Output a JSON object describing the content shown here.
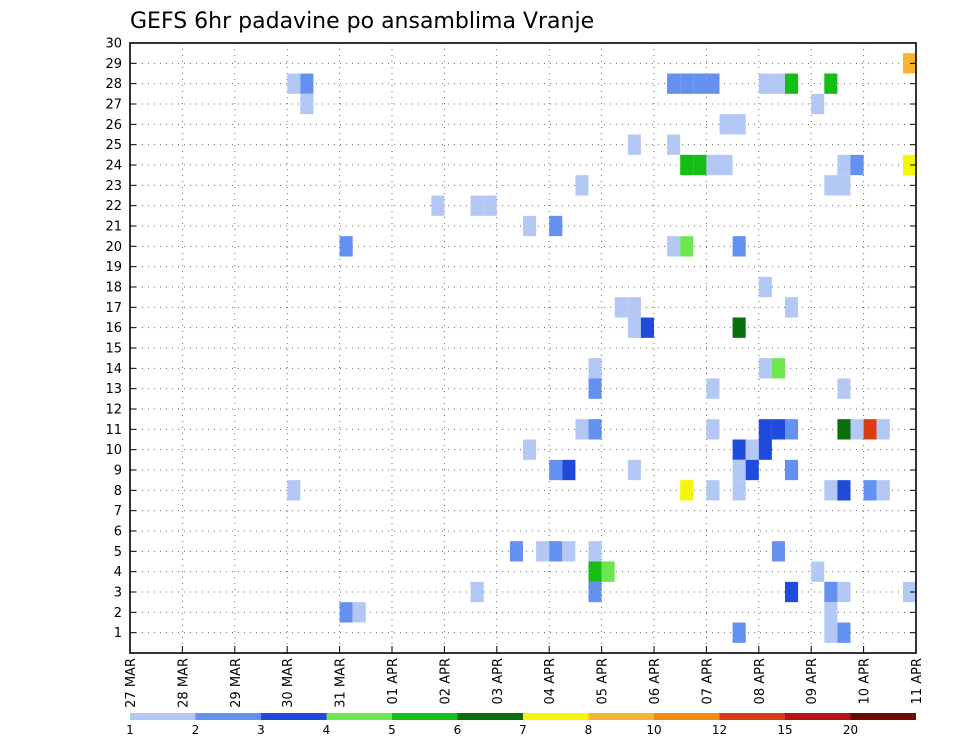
{
  "chart_data": {
    "type": "heatmap",
    "title": "GEFS 6hr padavine po ansamblima Vranje",
    "xlabel": "",
    "ylabel": "",
    "x_ticks": [
      "27 MAR",
      "28 MAR",
      "29 MAR",
      "30 MAR",
      "31 MAR",
      "01 APR",
      "02 APR",
      "03 APR",
      "04 APR",
      "05 APR",
      "06 APR",
      "07 APR",
      "08 APR",
      "09 APR",
      "10 APR",
      "11 APR"
    ],
    "y_ticks": [
      "1",
      "2",
      "3",
      "4",
      "5",
      "6",
      "7",
      "8",
      "9",
      "10",
      "11",
      "12",
      "13",
      "14",
      "15",
      "16",
      "17",
      "18",
      "19",
      "20",
      "21",
      "22",
      "23",
      "24",
      "25",
      "26",
      "27",
      "28",
      "29",
      "30"
    ],
    "x_unit": "6-hour step from 27 MAR 00Z",
    "ylim": [
      0,
      30
    ],
    "xlim": [
      0,
      60
    ],
    "grid": true,
    "legend": {
      "placement": "bottom",
      "labels": [
        "1",
        "2",
        "3",
        "4",
        "5",
        "6",
        "7",
        "8",
        "10",
        "12",
        "15",
        "20"
      ],
      "colors": [
        "#b4c8f5",
        "#6490f0",
        "#1e4bdc",
        "#6ee650",
        "#14be14",
        "#0a6e0a",
        "#f5f50a",
        "#f5b432",
        "#f58c14",
        "#dc3c14",
        "#b41414",
        "#6e0a0a"
      ]
    },
    "cells": [
      {
        "x": 12.5,
        "y": 28,
        "v": 1
      },
      {
        "x": 13.5,
        "y": 28,
        "v": 2
      },
      {
        "x": 13.5,
        "y": 27,
        "v": 1
      },
      {
        "x": 41.5,
        "y": 28,
        "v": 2
      },
      {
        "x": 42.5,
        "y": 28,
        "v": 2
      },
      {
        "x": 43.5,
        "y": 28,
        "v": 2
      },
      {
        "x": 44.5,
        "y": 28,
        "v": 2
      },
      {
        "x": 48.5,
        "y": 28,
        "v": 1
      },
      {
        "x": 49.5,
        "y": 28,
        "v": 1
      },
      {
        "x": 50.5,
        "y": 28,
        "v": 5
      },
      {
        "x": 53.5,
        "y": 28,
        "v": 5
      },
      {
        "x": 59.5,
        "y": 29,
        "v": 8
      },
      {
        "x": 52.5,
        "y": 27,
        "v": 1
      },
      {
        "x": 45.5,
        "y": 26,
        "v": 1
      },
      {
        "x": 46.5,
        "y": 26,
        "v": 1
      },
      {
        "x": 38.5,
        "y": 25,
        "v": 1
      },
      {
        "x": 41.5,
        "y": 25,
        "v": 1
      },
      {
        "x": 42.5,
        "y": 24,
        "v": 5
      },
      {
        "x": 43.5,
        "y": 24,
        "v": 5
      },
      {
        "x": 44.5,
        "y": 24,
        "v": 1
      },
      {
        "x": 45.5,
        "y": 24,
        "v": 1
      },
      {
        "x": 54.5,
        "y": 24,
        "v": 1
      },
      {
        "x": 55.5,
        "y": 24,
        "v": 2
      },
      {
        "x": 59.5,
        "y": 24,
        "v": 7
      },
      {
        "x": 34.5,
        "y": 23,
        "v": 1
      },
      {
        "x": 53.5,
        "y": 23,
        "v": 1
      },
      {
        "x": 54.5,
        "y": 23,
        "v": 1
      },
      {
        "x": 23.5,
        "y": 22,
        "v": 1
      },
      {
        "x": 26.5,
        "y": 22,
        "v": 1
      },
      {
        "x": 27.5,
        "y": 22,
        "v": 1
      },
      {
        "x": 30.5,
        "y": 21,
        "v": 1
      },
      {
        "x": 32.5,
        "y": 21,
        "v": 2
      },
      {
        "x": 16.5,
        "y": 20,
        "v": 2
      },
      {
        "x": 41.5,
        "y": 20,
        "v": 1
      },
      {
        "x": 42.5,
        "y": 20,
        "v": 4
      },
      {
        "x": 46.5,
        "y": 20,
        "v": 2
      },
      {
        "x": 48.5,
        "y": 18,
        "v": 1
      },
      {
        "x": 37.5,
        "y": 17,
        "v": 1
      },
      {
        "x": 38.5,
        "y": 17,
        "v": 1
      },
      {
        "x": 50.5,
        "y": 17,
        "v": 1
      },
      {
        "x": 38.5,
        "y": 16,
        "v": 1
      },
      {
        "x": 39.5,
        "y": 16,
        "v": 3
      },
      {
        "x": 46.5,
        "y": 16,
        "v": 6
      },
      {
        "x": 35.5,
        "y": 14,
        "v": 1
      },
      {
        "x": 48.5,
        "y": 14,
        "v": 1
      },
      {
        "x": 49.5,
        "y": 14,
        "v": 4
      },
      {
        "x": 35.5,
        "y": 13,
        "v": 2
      },
      {
        "x": 44.5,
        "y": 13,
        "v": 1
      },
      {
        "x": 54.5,
        "y": 13,
        "v": 1
      },
      {
        "x": 34.5,
        "y": 11,
        "v": 1
      },
      {
        "x": 35.5,
        "y": 11,
        "v": 2
      },
      {
        "x": 44.5,
        "y": 11,
        "v": 1
      },
      {
        "x": 48.5,
        "y": 11,
        "v": 3
      },
      {
        "x": 49.5,
        "y": 11,
        "v": 3
      },
      {
        "x": 50.5,
        "y": 11,
        "v": 2
      },
      {
        "x": 54.5,
        "y": 11,
        "v": 6
      },
      {
        "x": 55.5,
        "y": 11,
        "v": 1
      },
      {
        "x": 56.5,
        "y": 11,
        "v": 12
      },
      {
        "x": 57.5,
        "y": 11,
        "v": 1
      },
      {
        "x": 30.5,
        "y": 10,
        "v": 1
      },
      {
        "x": 46.5,
        "y": 10,
        "v": 3
      },
      {
        "x": 47.5,
        "y": 10,
        "v": 1
      },
      {
        "x": 48.5,
        "y": 10,
        "v": 3
      },
      {
        "x": 32.5,
        "y": 9,
        "v": 2
      },
      {
        "x": 33.5,
        "y": 9,
        "v": 3
      },
      {
        "x": 38.5,
        "y": 9,
        "v": 1
      },
      {
        "x": 46.5,
        "y": 9,
        "v": 1
      },
      {
        "x": 47.5,
        "y": 9,
        "v": 3
      },
      {
        "x": 50.5,
        "y": 9,
        "v": 2
      },
      {
        "x": 12.5,
        "y": 8,
        "v": 1
      },
      {
        "x": 42.5,
        "y": 8,
        "v": 7.5
      },
      {
        "x": 44.5,
        "y": 8,
        "v": 1
      },
      {
        "x": 46.5,
        "y": 8,
        "v": 1
      },
      {
        "x": 53.5,
        "y": 8,
        "v": 1
      },
      {
        "x": 54.5,
        "y": 8,
        "v": 3
      },
      {
        "x": 56.5,
        "y": 8,
        "v": 2
      },
      {
        "x": 57.5,
        "y": 8,
        "v": 1
      },
      {
        "x": 29.5,
        "y": 5,
        "v": 2
      },
      {
        "x": 31.5,
        "y": 5,
        "v": 1
      },
      {
        "x": 32.5,
        "y": 5,
        "v": 2
      },
      {
        "x": 33.5,
        "y": 5,
        "v": 1
      },
      {
        "x": 35.5,
        "y": 5,
        "v": 1
      },
      {
        "x": 49.5,
        "y": 5,
        "v": 2
      },
      {
        "x": 35.5,
        "y": 4,
        "v": 5
      },
      {
        "x": 36.5,
        "y": 4,
        "v": 4
      },
      {
        "x": 52.5,
        "y": 4,
        "v": 1
      },
      {
        "x": 26.5,
        "y": 3,
        "v": 1
      },
      {
        "x": 35.5,
        "y": 3,
        "v": 2
      },
      {
        "x": 50.5,
        "y": 3,
        "v": 3
      },
      {
        "x": 53.5,
        "y": 3,
        "v": 2
      },
      {
        "x": 54.5,
        "y": 3,
        "v": 1
      },
      {
        "x": 59.5,
        "y": 3,
        "v": 1
      },
      {
        "x": 16.5,
        "y": 2,
        "v": 2
      },
      {
        "x": 17.5,
        "y": 2,
        "v": 1
      },
      {
        "x": 53.5,
        "y": 2,
        "v": 1
      },
      {
        "x": 46.5,
        "y": 1,
        "v": 2
      },
      {
        "x": 53.5,
        "y": 1,
        "v": 1
      },
      {
        "x": 54.5,
        "y": 1,
        "v": 2
      }
    ]
  }
}
